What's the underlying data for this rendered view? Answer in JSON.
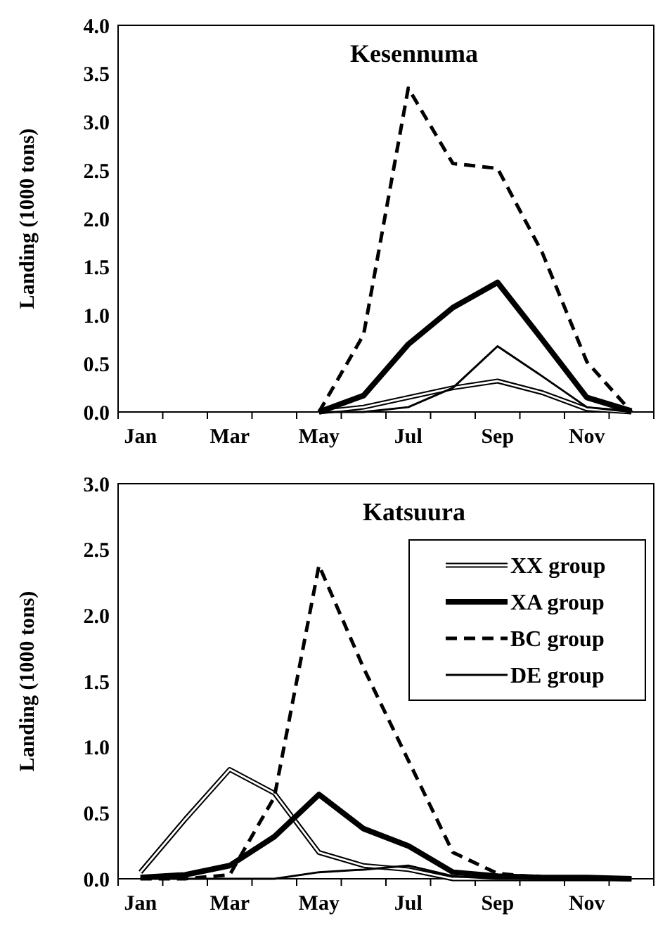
{
  "chart_data": [
    {
      "type": "line",
      "title": "Kesennuma",
      "ylabel": "Landing  (1000 tons)",
      "categories": [
        "Jan",
        null,
        "Mar",
        null,
        "May",
        null,
        "Jul",
        null,
        "Sep",
        null,
        "Nov",
        null
      ],
      "ylim": [
        0,
        4
      ],
      "yticks": [
        {
          "value": 0,
          "label": "0.0"
        },
        {
          "value": 0.5,
          "label": "0.5"
        },
        {
          "value": 1,
          "label": "1.0"
        },
        {
          "value": 1.5,
          "label": "1.5"
        },
        {
          "value": 2,
          "label": "2.0"
        },
        {
          "value": 2.5,
          "label": "2.5"
        },
        {
          "value": 3,
          "label": "3.0"
        },
        {
          "value": 3.5,
          "label": "3.5"
        },
        {
          "value": 4,
          "label": "4.0"
        }
      ],
      "grid": false,
      "legend": false,
      "marker": "none",
      "series": [
        {
          "color": "#000000",
          "line_style": "solid",
          "values": [
            null,
            null,
            null,
            null,
            0,
            0.05,
            0.15,
            0.25,
            0.32,
            0.2,
            0.03,
            0
          ]
        },
        {
          "color": "#000000",
          "line_style": "solid",
          "values": [
            null,
            null,
            null,
            null,
            0,
            0.17,
            0.7,
            1.08,
            1.34,
            0.75,
            0.15,
            0.01
          ]
        },
        {
          "color": "#000000",
          "line_style": "dashed",
          "values": [
            null,
            null,
            null,
            null,
            0,
            0.8,
            3.35,
            2.57,
            2.52,
            1.65,
            0.52,
            0
          ]
        },
        {
          "color": "#000000",
          "line_style": "solid",
          "values": [
            null,
            null,
            null,
            null,
            0,
            0,
            0.05,
            0.25,
            0.68,
            0.37,
            0.05,
            0
          ]
        }
      ]
    },
    {
      "type": "line",
      "title": "Katsuura",
      "ylabel": "Landing  (1000 tons)",
      "categories": [
        "Jan",
        null,
        "Mar",
        null,
        "May",
        null,
        "Jul",
        null,
        "Sep",
        null,
        "Nov",
        null
      ],
      "ylim": [
        0,
        3
      ],
      "yticks": [
        {
          "value": 0,
          "label": "0.0"
        },
        {
          "value": 0.5,
          "label": "0.5"
        },
        {
          "value": 1,
          "label": "1.0"
        },
        {
          "value": 1.5,
          "label": "1.5"
        },
        {
          "value": 2,
          "label": "2.0"
        },
        {
          "value": 2.5,
          "label": "2.5"
        },
        {
          "value": 3,
          "label": "3.0"
        }
      ],
      "grid": false,
      "legend": "top right",
      "marker": "none",
      "series": [
        {
          "name": "XX group",
          "color": "#000000",
          "line_style": "solid",
          "values": [
            0.05,
            0.45,
            0.83,
            0.65,
            0.2,
            0.1,
            0.07,
            0,
            0,
            0,
            0,
            0
          ]
        },
        {
          "name": "XA group",
          "color": "#000000",
          "line_style": "solid",
          "values": [
            0.01,
            0.03,
            0.1,
            0.32,
            0.64,
            0.38,
            0.25,
            0.05,
            0.02,
            0.01,
            0.01,
            0
          ]
        },
        {
          "name": "BC group",
          "color": "#000000",
          "line_style": "dashed",
          "values": [
            0,
            0,
            0.03,
            0.62,
            2.38,
            1.6,
            0.9,
            0.2,
            0.04,
            0.01,
            0,
            0
          ]
        },
        {
          "name": "DE group",
          "color": "#000000",
          "line_style": "solid",
          "values": [
            0,
            0,
            0,
            0,
            0.05,
            0.07,
            0.1,
            0.02,
            0,
            0,
            0,
            0
          ]
        }
      ]
    }
  ]
}
